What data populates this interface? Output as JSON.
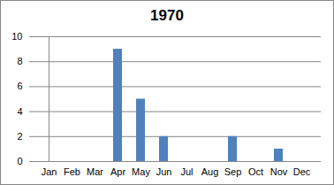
{
  "chart_data": {
    "type": "bar",
    "title": "1970",
    "categories": [
      "Jan",
      "Feb",
      "Mar",
      "Apr",
      "May",
      "Jun",
      "Jul",
      "Aug",
      "Sep",
      "Oct",
      "Nov",
      "Dec"
    ],
    "values": [
      0,
      0,
      0,
      9,
      5,
      2,
      0,
      0,
      2,
      0,
      1,
      0
    ],
    "color": "#4f81bd",
    "ylim": [
      0,
      10
    ],
    "yticks": [
      0,
      2,
      4,
      6,
      8,
      10
    ],
    "grid": true
  }
}
